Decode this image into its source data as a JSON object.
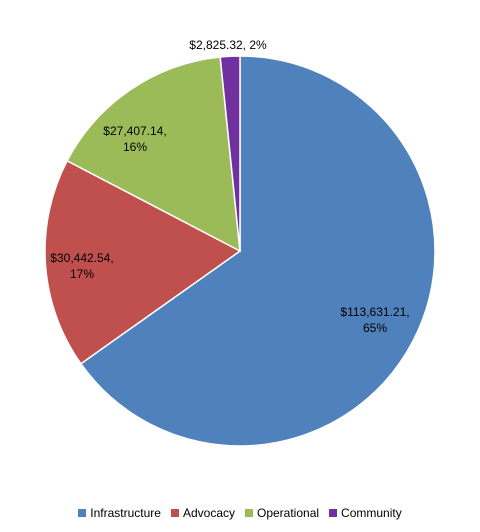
{
  "chart_data": {
    "type": "pie",
    "title": "",
    "slices": [
      {
        "name": "Infrastructure",
        "value": 113631.21,
        "percent": 65,
        "label_value": "$113,631.21,",
        "label_percent": "65%",
        "color": "#4F81BD"
      },
      {
        "name": "Advocacy",
        "value": 30442.54,
        "percent": 17,
        "label_value": "$30,442.54,",
        "label_percent": "17%",
        "color": "#C0504D"
      },
      {
        "name": "Operational",
        "value": 27407.14,
        "percent": 16,
        "label_value": "$27,407.14,",
        "label_percent": "16%",
        "color": "#9BBB59"
      },
      {
        "name": "Community",
        "value": 2825.32,
        "percent": 2,
        "label_value": "$2,825.32, 2%",
        "label_percent": "",
        "color": "#7030A0"
      }
    ],
    "legend": {
      "position": "bottom",
      "entries": [
        "Infrastructure",
        "Advocacy",
        "Operational",
        "Community"
      ]
    }
  }
}
